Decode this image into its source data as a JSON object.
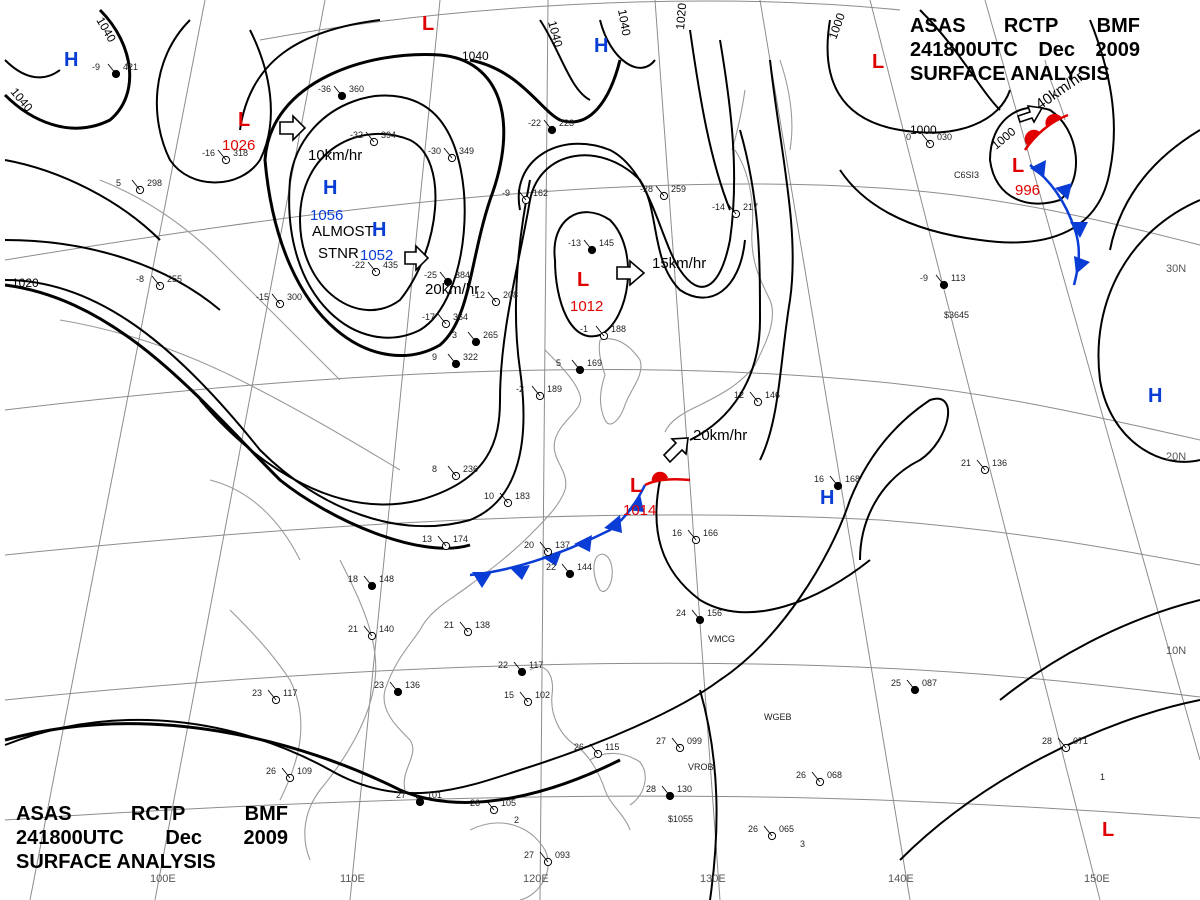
{
  "header": {
    "agency": "ASAS",
    "station": "RCTP",
    "office": "BMF",
    "datetime": "241800UTC",
    "month": "Dec",
    "year": "2009",
    "product": "SURFACE ANALYSIS"
  },
  "colors": {
    "low": "#e00000",
    "high": "#0a3cd6",
    "warm_front": "#e00000",
    "cold_front": "#0a3cd6",
    "isobar": "#000000",
    "grid": "#8c8c8c",
    "coastline": "#9a9a9a"
  },
  "isobar_labels": [
    "1040",
    "1040",
    "1040",
    "1040",
    "1040",
    "1020",
    "1020",
    "1000",
    "1000",
    "1000"
  ],
  "pressure_centers": [
    {
      "type": "L",
      "value": "1026"
    },
    {
      "type": "H",
      "value": "1056"
    },
    {
      "type": "H",
      "value": "1052"
    },
    {
      "type": "L",
      "value": "1012"
    },
    {
      "type": "L",
      "value": "1014"
    },
    {
      "type": "L",
      "value": "996"
    },
    {
      "type": "H",
      "value": ""
    },
    {
      "type": "H",
      "value": ""
    },
    {
      "type": "H",
      "value": ""
    },
    {
      "type": "H",
      "value": ""
    },
    {
      "type": "L",
      "value": ""
    },
    {
      "type": "L",
      "value": ""
    },
    {
      "type": "L",
      "value": ""
    }
  ],
  "motion_labels": [
    "10km/hr",
    "20km/hr",
    "15km/hr",
    "20km/hr",
    "40km/hr"
  ],
  "warning": {
    "line1": "ALMOST",
    "line2": "STNR"
  },
  "longitude_labels": [
    "100E",
    "110E",
    "120E",
    "130E",
    "140E",
    "150E"
  ],
  "latitude_labels": [
    "30N",
    "20N",
    "10N"
  ],
  "stations": [
    {
      "t": "18",
      "p": "148"
    },
    {
      "t": "21",
      "p": "140"
    },
    {
      "t": "23",
      "p": "117"
    },
    {
      "t": "23",
      "p": "136"
    },
    {
      "t": "21",
      "p": "138"
    },
    {
      "t": "26",
      "p": "109"
    },
    {
      "t": "27",
      "p": "101"
    },
    {
      "t": "26",
      "p": "105"
    },
    {
      "t": "27",
      "p": "093"
    },
    {
      "t": "22",
      "p": "117"
    },
    {
      "t": "15",
      "p": "102"
    },
    {
      "t": "27",
      "p": "099"
    },
    {
      "t": "28",
      "p": "130"
    },
    {
      "t": "26",
      "p": "065"
    },
    {
      "t": "26",
      "p": "068"
    },
    {
      "t": "25",
      "p": "087"
    },
    {
      "t": "28",
      "p": "071"
    },
    {
      "t": "26",
      "p": "115"
    },
    {
      "t": "24",
      "p": "156"
    },
    {
      "t": "16",
      "p": "166"
    },
    {
      "t": "21",
      "p": "136"
    },
    {
      "t": "16",
      "p": "168"
    },
    {
      "t": "13",
      "p": "174"
    },
    {
      "t": "20",
      "p": "137"
    },
    {
      "t": "22",
      "p": "144"
    },
    {
      "t": "10",
      "p": "183"
    },
    {
      "t": "8",
      "p": "236"
    },
    {
      "t": "9",
      "p": "322"
    },
    {
      "t": "-15",
      "p": "300"
    },
    {
      "t": "-8",
      "p": "255"
    },
    {
      "t": "-36",
      "p": "360"
    },
    {
      "t": "-32",
      "p": "394"
    },
    {
      "t": "-30",
      "p": "349"
    },
    {
      "t": "-22",
      "p": "223"
    },
    {
      "t": "-28",
      "p": "259"
    },
    {
      "t": "-9",
      "p": "162"
    },
    {
      "t": "-13",
      "p": "145"
    },
    {
      "t": "-12",
      "p": "208"
    },
    {
      "t": "-1",
      "p": "188"
    },
    {
      "t": "5",
      "p": "169"
    },
    {
      "t": "-16",
      "p": "318"
    },
    {
      "t": "5",
      "p": "298"
    },
    {
      "t": "-25",
      "p": "384"
    },
    {
      "t": "-22",
      "p": "435"
    },
    {
      "t": "-17",
      "p": "364"
    },
    {
      "t": "3",
      "p": "265"
    },
    {
      "t": "-2",
      "p": "189"
    },
    {
      "t": "12",
      "p": "146"
    },
    {
      "t": "-9",
      "p": "113"
    },
    {
      "t": "0",
      "p": "030"
    },
    {
      "t": "-14",
      "p": "217"
    },
    {
      "t": "-9",
      "p": "421"
    }
  ],
  "ship_codes": [
    "VMCG",
    "WGEB",
    "VROB",
    "C6SI3",
    "$3645",
    "$1055"
  ],
  "extra_numerals": [
    "1",
    "2",
    "3"
  ]
}
